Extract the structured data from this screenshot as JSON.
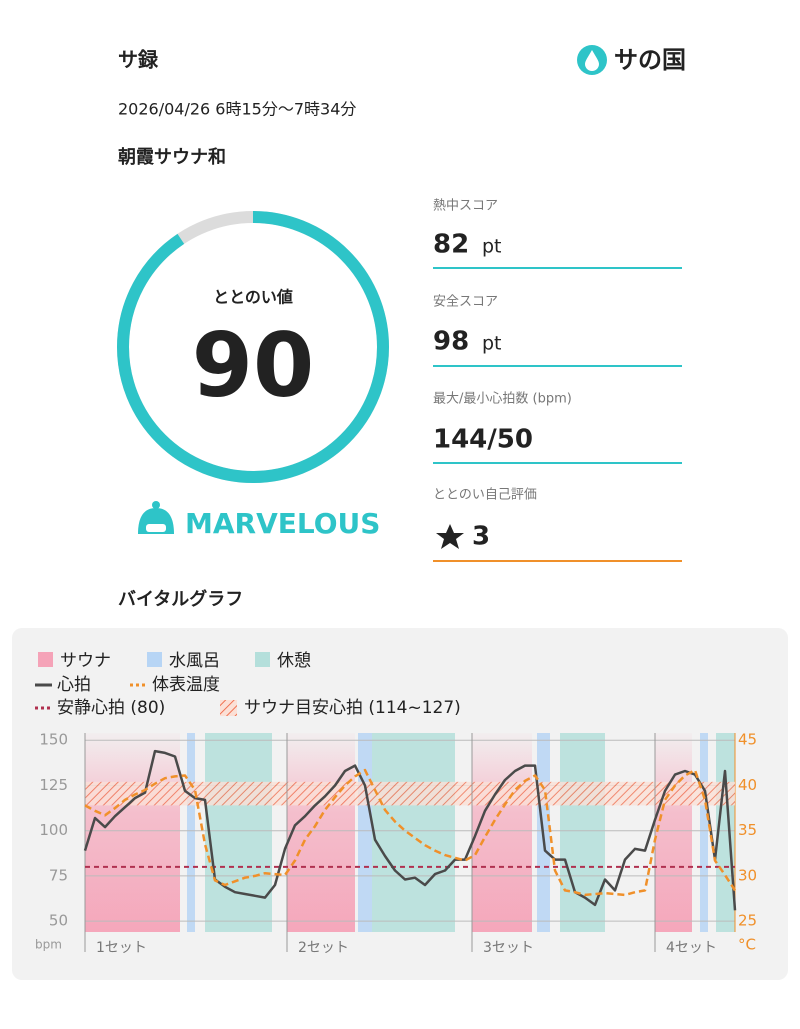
{
  "header": {
    "title": "サ録",
    "logo": "サの国"
  },
  "date": "2026/04/26 6時15分〜7時34分",
  "facility": "朝霞サウナ和",
  "totonoi": {
    "label": "ととのい値",
    "value": 90,
    "rank": "MARVELOUS"
  },
  "scores": [
    {
      "label": "熱中スコア",
      "value": 82,
      "unit": "pt"
    },
    {
      "label": "安全スコア",
      "value": 98,
      "unit": "pt"
    },
    {
      "label": "最大/最小心拍数 (bpm)",
      "value": "144/50"
    },
    {
      "label": "ととのい自己評価",
      "value": 3
    }
  ],
  "vital_graph": {
    "title": "バイタルグラフ",
    "chart": {
      "type": "line",
      "phase_types": [
        {
          "name": "サウナ",
          "color": "#f5a3b8",
          "spans": [
            [
              0,
              9.5
            ],
            [
              20.2,
              27
            ],
            [
              38.7,
              44.7
            ],
            [
              57,
              60.7
            ]
          ]
        },
        {
          "name": "水風呂",
          "color": "#b7d5f5",
          "spans": [
            [
              10.2,
              11
            ],
            [
              27.3,
              28.7
            ],
            [
              45.2,
              46.5
            ],
            [
              61.5,
              62.3
            ]
          ]
        },
        {
          "name": "休憩",
          "color": "#b4dfdb",
          "spans": [
            [
              12,
              18.7
            ],
            [
              28.7,
              37
            ],
            [
              47.5,
              52
            ],
            [
              63.1,
              65
            ]
          ]
        }
      ],
      "series": [
        {
          "name": "心拍",
          "color": "#4a4a4a",
          "style": "solid",
          "values": [
            89,
            107,
            102,
            108,
            113,
            118,
            121,
            144,
            143,
            141,
            122,
            118,
            117,
            73,
            69,
            66,
            65,
            64,
            63,
            70,
            90,
            103,
            108,
            114,
            119,
            125,
            133,
            136,
            125,
            95,
            86,
            78,
            73,
            74,
            70,
            76,
            78,
            84,
            84,
            97,
            111,
            120,
            128,
            133,
            136,
            136,
            89,
            84,
            84,
            66,
            63,
            59,
            73,
            67,
            84,
            90,
            89,
            106,
            122,
            131,
            133,
            131,
            122,
            84,
            133,
            56
          ]
        },
        {
          "name": "体表温度",
          "color": "#f0902a",
          "style": "dashed",
          "axis": "y2",
          "values": [
            37.8,
            37.2,
            36.7,
            37.5,
            38.4,
            39,
            39.5,
            40.2,
            40.8,
            41,
            41.1,
            39.5,
            33.5,
            29.5,
            29,
            29.4,
            29.8,
            30,
            30.3,
            30.2,
            30.1,
            31.7,
            34,
            35.5,
            37.3,
            38.7,
            40,
            41,
            41.7,
            39.5,
            37.3,
            36,
            35,
            34.2,
            33.4,
            32.8,
            32.3,
            32,
            31.7,
            32.3,
            34.3,
            36.2,
            37.9,
            39.5,
            40.5,
            41.1,
            39.5,
            30.6,
            28.4,
            28.2,
            27.9,
            28,
            28.1,
            28,
            27.9,
            28.2,
            28.4,
            34,
            38.4,
            40,
            41.1,
            41.7,
            38.4,
            31.7,
            30.1,
            28.4
          ]
        }
      ],
      "rest_hr": {
        "name": "安静心拍 (80)",
        "value": 80,
        "color": "#b0304f"
      },
      "target_band": {
        "name": "サウナ目安心拍 (114~127)",
        "range": [
          114,
          127
        ],
        "color": "#f07050"
      },
      "sets": {
        "labels": [
          "1セット",
          "2セット",
          "3セット",
          "4セット"
        ],
        "starts": [
          0,
          20.2,
          38.7,
          57
        ]
      },
      "xlim": [
        0,
        65
      ],
      "ylim": [
        44,
        154
      ],
      "yticks": [
        50,
        75,
        100,
        125,
        150
      ],
      "y_unit": "bpm",
      "y2lim": [
        23.8,
        45.8
      ],
      "y2ticks": [
        25,
        30,
        35,
        40,
        45
      ],
      "y2_unit": "°C",
      "grid": true
    }
  }
}
